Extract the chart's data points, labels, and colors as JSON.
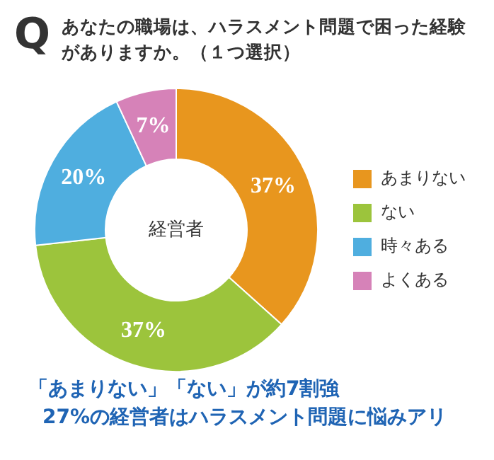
{
  "chart_data": {
    "type": "donut",
    "title": "あなたの職場は、ハラスメント問題で困った経験がありますか。（１つ選択）",
    "categories": [
      "あまりない",
      "ない",
      "時々ある",
      "よくある"
    ],
    "values": [
      37,
      37,
      20,
      7
    ],
    "colors": [
      "#e8961e",
      "#9cc43c",
      "#4faedf",
      "#d682b8"
    ],
    "value_labels": [
      "37%",
      "37%",
      "20%",
      "7%"
    ],
    "legend": "right",
    "annotations": [
      "Q",
      "経営者",
      "「あまりない」「ない」が約7割強",
      "27%の経営者はハラスメント問題に悩みアリ"
    ]
  }
}
